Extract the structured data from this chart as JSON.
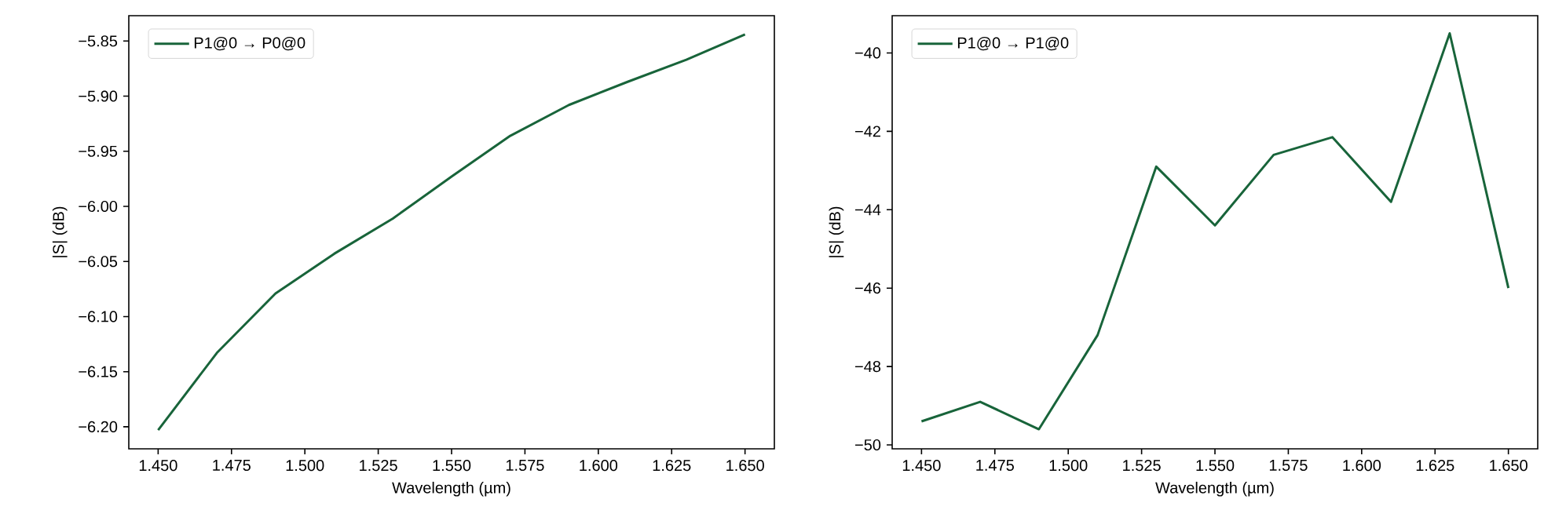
{
  "chart_data": [
    {
      "type": "line",
      "xlabel": "Wavelength (µm)",
      "ylabel": "|S| (dB)",
      "legend": "top left",
      "grid": false,
      "x": [
        1.45,
        1.47,
        1.49,
        1.51,
        1.53,
        1.55,
        1.57,
        1.59,
        1.61,
        1.63,
        1.65
      ],
      "series": [
        {
          "name": "P1@0 → P0@0",
          "color": "#18643a",
          "values": [
            -6.203,
            -6.133,
            -6.079,
            -6.043,
            -6.011,
            -5.973,
            -5.936,
            -5.908,
            -5.887,
            -5.867,
            -5.844
          ]
        }
      ],
      "xlim": [
        1.44,
        1.66
      ],
      "ylim": [
        -6.22,
        -5.827
      ],
      "xticks": [
        {
          "value": 1.45,
          "label": "1.450"
        },
        {
          "value": 1.475,
          "label": "1.475"
        },
        {
          "value": 1.5,
          "label": "1.500"
        },
        {
          "value": 1.525,
          "label": "1.525"
        },
        {
          "value": 1.55,
          "label": "1.550"
        },
        {
          "value": 1.575,
          "label": "1.575"
        },
        {
          "value": 1.6,
          "label": "1.600"
        },
        {
          "value": 1.625,
          "label": "1.625"
        },
        {
          "value": 1.65,
          "label": "1.650"
        }
      ],
      "yticks": [
        {
          "value": -6.2,
          "label": "−6.20"
        },
        {
          "value": -6.15,
          "label": "−6.15"
        },
        {
          "value": -6.1,
          "label": "−6.10"
        },
        {
          "value": -6.05,
          "label": "−6.05"
        },
        {
          "value": -6.0,
          "label": "−6.00"
        },
        {
          "value": -5.95,
          "label": "−5.95"
        },
        {
          "value": -5.9,
          "label": "−5.90"
        },
        {
          "value": -5.85,
          "label": "−5.85"
        }
      ]
    },
    {
      "type": "line",
      "xlabel": "Wavelength (µm)",
      "ylabel": "|S| (dB)",
      "legend": "top left",
      "grid": false,
      "x": [
        1.45,
        1.47,
        1.49,
        1.51,
        1.53,
        1.55,
        1.57,
        1.59,
        1.61,
        1.63,
        1.65
      ],
      "series": [
        {
          "name": "P1@0 → P1@0",
          "color": "#18643a",
          "values": [
            -49.4,
            -48.9,
            -49.6,
            -47.2,
            -42.9,
            -44.4,
            -42.6,
            -42.15,
            -43.8,
            -39.5,
            -46.0
          ]
        }
      ],
      "xlim": [
        1.44,
        1.66
      ],
      "ylim": [
        -50.1,
        -39.05
      ],
      "xticks": [
        {
          "value": 1.45,
          "label": "1.450"
        },
        {
          "value": 1.475,
          "label": "1.475"
        },
        {
          "value": 1.5,
          "label": "1.500"
        },
        {
          "value": 1.525,
          "label": "1.525"
        },
        {
          "value": 1.55,
          "label": "1.550"
        },
        {
          "value": 1.575,
          "label": "1.575"
        },
        {
          "value": 1.6,
          "label": "1.600"
        },
        {
          "value": 1.625,
          "label": "1.625"
        },
        {
          "value": 1.65,
          "label": "1.650"
        }
      ],
      "yticks": [
        {
          "value": -50,
          "label": "−50"
        },
        {
          "value": -48,
          "label": "−48"
        },
        {
          "value": -46,
          "label": "−46"
        },
        {
          "value": -44,
          "label": "−44"
        },
        {
          "value": -42,
          "label": "−42"
        },
        {
          "value": -40,
          "label": "−40"
        }
      ]
    }
  ]
}
